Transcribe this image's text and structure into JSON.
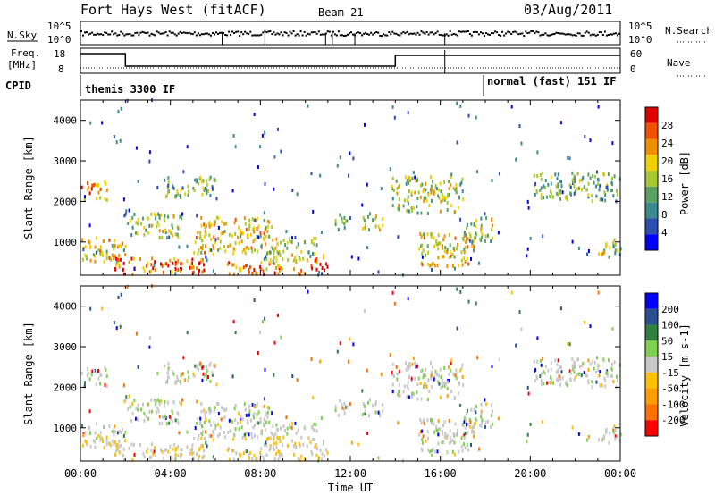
{
  "header": {
    "title": "Fort Hays West (fitACF)",
    "beam": "Beam 21",
    "date": "03/Aug/2011"
  },
  "top_panels": {
    "nsky_label": "N.Sky",
    "nsearch_label": "N.Search",
    "noise_tick_high": "10^5",
    "noise_tick_low": "10^0",
    "freq_label": "Freq.",
    "freq_unit": "[MHz]",
    "freq_tick_high": "18",
    "freq_tick_low": "8",
    "nave_label": "Nave",
    "nave_tick_high": "60",
    "nave_tick_low": "0",
    "cpid_label": "CPID",
    "cpid_1": "themis 3300 IF",
    "cpid_2": "normal (fast) 151 IF"
  },
  "colors": {
    "power": [
      "#0000ff",
      "#2a4fb0",
      "#3a8a90",
      "#5aa060",
      "#a8c830",
      "#f0d000",
      "#f09000",
      "#f05000",
      "#e00000"
    ],
    "velocity": [
      "#ff0000",
      "#ff7000",
      "#ff9c00",
      "#ffc000",
      "#c8c8c8",
      "#80d050",
      "#308040",
      "#285090",
      "#0000ff"
    ]
  },
  "chart_data": [
    {
      "type": "heatmap",
      "name": "power",
      "ylabel": "Slant Range [km]",
      "colorbar_label": "Power [dB]",
      "colorbar_ticks": [
        "4",
        "8",
        "12",
        "16",
        "20",
        "24",
        "28"
      ],
      "ylim": [
        180,
        4500
      ],
      "yticks": [
        "1000",
        "2000",
        "3000",
        "4000"
      ],
      "xlim_hours": [
        0,
        24
      ],
      "echo_regions": [
        {
          "t": [
            0.0,
            1.2
          ],
          "range": [
            2000,
            2500
          ],
          "level": 6
        },
        {
          "t": [
            0.0,
            2.0
          ],
          "range": [
            500,
            1100
          ],
          "level": 5
        },
        {
          "t": [
            1.5,
            5.5
          ],
          "range": [
            200,
            600
          ],
          "level": 7
        },
        {
          "t": [
            2.0,
            4.5
          ],
          "range": [
            1100,
            1700
          ],
          "level": 4
        },
        {
          "t": [
            3.5,
            6.0
          ],
          "range": [
            2100,
            2600
          ],
          "level": 3
        },
        {
          "t": [
            5.0,
            8.5
          ],
          "range": [
            700,
            1600
          ],
          "level": 5
        },
        {
          "t": [
            6.5,
            10.0
          ],
          "range": [
            200,
            500
          ],
          "level": 6
        },
        {
          "t": [
            8.0,
            10.5
          ],
          "range": [
            500,
            1100
          ],
          "level": 4
        },
        {
          "t": [
            10.0,
            11.0
          ],
          "range": [
            300,
            700
          ],
          "level": 7
        },
        {
          "t": [
            11.3,
            12.0
          ],
          "range": [
            1300,
            1700
          ],
          "level": 3
        },
        {
          "t": [
            12.5,
            13.5
          ],
          "range": [
            1300,
            1700
          ],
          "level": 4
        },
        {
          "t": [
            13.8,
            17.0
          ],
          "range": [
            1700,
            2600
          ],
          "level": 4
        },
        {
          "t": [
            15.0,
            17.5
          ],
          "range": [
            400,
            1200
          ],
          "level": 5
        },
        {
          "t": [
            17.0,
            18.3
          ],
          "range": [
            1000,
            1600
          ],
          "level": 4
        },
        {
          "t": [
            20.0,
            24.0
          ],
          "range": [
            2000,
            2700
          ],
          "level": 3
        },
        {
          "t": [
            23.0,
            24.0
          ],
          "range": [
            600,
            1100
          ],
          "level": 4
        }
      ]
    },
    {
      "type": "heatmap",
      "name": "velocity",
      "ylabel": "Slant Range [km]",
      "colorbar_label": "Velocity [m s-1]",
      "colorbar_ticks": [
        "-200",
        "-100",
        "-50",
        "-15",
        "15",
        "50",
        "100",
        "200"
      ],
      "ylim": [
        180,
        4500
      ],
      "yticks": [
        "1000",
        "2000",
        "3000",
        "4000"
      ],
      "xlim_hours": [
        0,
        24
      ],
      "xlabel": "Time UT",
      "xticks": [
        "00:00",
        "04:00",
        "08:00",
        "12:00",
        "16:00",
        "20:00",
        "00:00"
      ]
    }
  ]
}
